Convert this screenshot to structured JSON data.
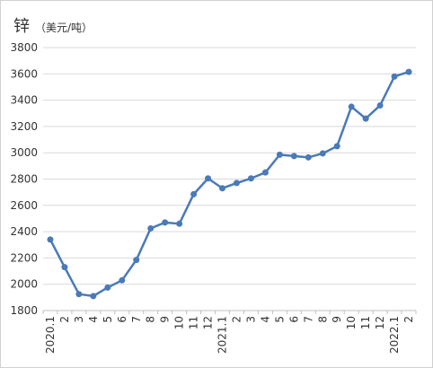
{
  "chart_data": {
    "type": "line",
    "title": "锌",
    "unit": "（美元/吨）",
    "ylim": [
      1800,
      3800
    ],
    "yticks": [
      1800,
      2000,
      2200,
      2400,
      2600,
      2800,
      3000,
      3200,
      3400,
      3600,
      3800
    ],
    "grid": true,
    "line_color": "#4a7ab8",
    "categories": [
      "2020.1",
      "2",
      "3",
      "4",
      "5",
      "6",
      "7",
      "8",
      "9",
      "10",
      "11",
      "12",
      "2021.1",
      "2",
      "3",
      "4",
      "5",
      "6",
      "7",
      "8",
      "9",
      "10",
      "11",
      "12",
      "2022.1",
      "2"
    ],
    "series": [
      {
        "values": [
          2340,
          2130,
          1925,
          1910,
          1975,
          2030,
          2185,
          2425,
          2470,
          2460,
          2685,
          2805,
          2730,
          2770,
          2805,
          2850,
          2985,
          2975,
          2965,
          2995,
          3050,
          3350,
          3260,
          3360,
          3580,
          3615
        ]
      }
    ]
  }
}
